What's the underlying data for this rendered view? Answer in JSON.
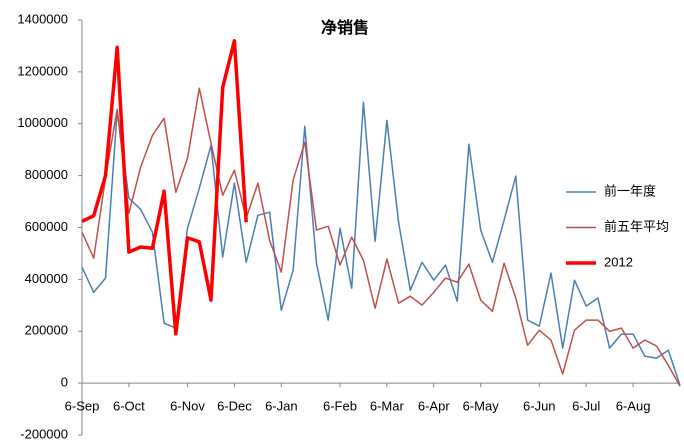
{
  "chart_data": {
    "type": "line",
    "title": "净销售",
    "categories": [
      "6-Sep",
      null,
      null,
      null,
      "6-Oct",
      null,
      null,
      null,
      null,
      "6-Nov",
      null,
      null,
      null,
      "6-Dec",
      null,
      null,
      null,
      "6-Jan",
      null,
      null,
      null,
      null,
      "6-Feb",
      null,
      null,
      null,
      "6-Mar",
      null,
      null,
      null,
      "6-Apr",
      null,
      null,
      null,
      "6-May",
      null,
      null,
      null,
      null,
      "6-Jun",
      null,
      null,
      null,
      "6-Jul",
      null,
      null,
      null,
      "6-Aug",
      null,
      null,
      null,
      null
    ],
    "series": [
      {
        "name": "前一年度",
        "color": "#4a7eb5",
        "width": 1.5,
        "values": [
          447000,
          350000,
          405000,
          1050000,
          713000,
          670000,
          582000,
          231000,
          212000,
          597000,
          751000,
          917000,
          486000,
          771000,
          466000,
          647000,
          659000,
          281000,
          435000,
          990000,
          462000,
          243000,
          597000,
          366000,
          1083000,
          547000,
          1013000,
          620000,
          358000,
          466000,
          397000,
          455000,
          316000,
          921000,
          590000,
          466000,
          628000,
          798000,
          243000,
          220000,
          424000,
          135000,
          397000,
          297000,
          328000,
          135000,
          189000,
          189000,
          104000,
          96000,
          127000,
          -8000
        ]
      },
      {
        "name": "前五年平均",
        "color": "#c0504d",
        "width": 1.5,
        "values": [
          582000,
          482000,
          790000,
          1056000,
          655000,
          832000,
          955000,
          1021000,
          736000,
          867000,
          1137000,
          925000,
          724000,
          821000,
          636000,
          771000,
          551000,
          428000,
          782000,
          929000,
          590000,
          605000,
          455000,
          563000,
          474000,
          289000,
          478000,
          308000,
          335000,
          301000,
          350000,
          405000,
          389000,
          459000,
          320000,
          277000,
          462000,
          328000,
          146000,
          204000,
          166000,
          35000,
          204000,
          243000,
          243000,
          200000,
          212000,
          135000,
          166000,
          143000,
          69000,
          -12000
        ]
      },
      {
        "name": "2012",
        "color": "#ff0000",
        "width": 3.5,
        "values": [
          624000,
          645000,
          800000,
          1295000,
          505000,
          525000,
          520000,
          740000,
          190000,
          560000,
          545000,
          320000,
          1140000,
          1320000,
          620000,
          null,
          null,
          null,
          null,
          null,
          null,
          null,
          null,
          null,
          null,
          null,
          null,
          null,
          null,
          null,
          null,
          null,
          null,
          null,
          null,
          null,
          null,
          null,
          null,
          null,
          null,
          null,
          null,
          null,
          null,
          null,
          null,
          null,
          null,
          null,
          null,
          null
        ]
      }
    ],
    "ylim": [
      -200000,
      1400000
    ],
    "yticks": [
      -200000,
      0,
      200000,
      400000,
      600000,
      800000,
      1000000,
      1200000,
      1400000
    ],
    "grid": false,
    "legend": "right"
  }
}
